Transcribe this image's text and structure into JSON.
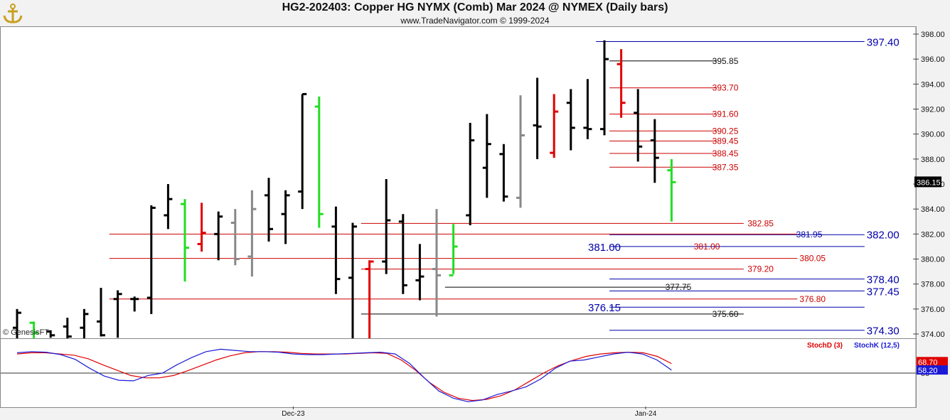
{
  "header": {
    "title": "HG2-202403:  Copper HG NYMX (Comb) Mar 2024 @ NYMEX  (Daily bars)",
    "subtitle": "www.TradeNavigator.com © 1999-2024"
  },
  "copyright": "© GenesisFT",
  "colors": {
    "up": "#000000",
    "red": "#e00000",
    "green": "#22dd22",
    "gray": "#888888",
    "blue": "#1a1ad6",
    "hline_red": "#cc0000",
    "hline_blue": "#0000aa",
    "hline_black": "#000000"
  },
  "chart_data": {
    "type": "ohlc",
    "price_axis": {
      "min": 374,
      "max": 398,
      "ticks": [
        398.0,
        396.0,
        394.0,
        392.0,
        390.0,
        388.0,
        386.0,
        384.0,
        382.0,
        380.0,
        378.0,
        376.0,
        374.0
      ]
    },
    "last_price": "386.15",
    "x_labels": [
      {
        "label": "Dec-23",
        "bar": 16.5
      },
      {
        "label": "Jan-24",
        "bar": 37.5
      }
    ],
    "bars": [
      {
        "h": 376.0,
        "l": 373.6,
        "o": 374.5,
        "c": 375.7,
        "color": "black"
      },
      {
        "h": 375.0,
        "l": 373.5,
        "o": 374.9,
        "c": 374.1,
        "color": "green"
      },
      {
        "h": 374.3,
        "l": 373.7,
        "o": 374.2,
        "c": 373.9,
        "color": "black"
      },
      {
        "h": 375.3,
        "l": 373.5,
        "o": 374.6,
        "c": 373.8,
        "color": "black"
      },
      {
        "h": 376.0,
        "l": 373.6,
        "o": 374.5,
        "c": 375.6,
        "color": "black"
      },
      {
        "h": 377.7,
        "l": 373.8,
        "o": 375.0,
        "c": 373.9,
        "color": "black"
      },
      {
        "h": 377.5,
        "l": 373.7,
        "o": 376.8,
        "c": 377.2,
        "color": "black"
      },
      {
        "h": 377.0,
        "l": 375.8,
        "o": 376.8,
        "c": 376.8,
        "color": "black"
      },
      {
        "h": 384.3,
        "l": 375.6,
        "o": 376.9,
        "c": 384.1,
        "color": "black"
      },
      {
        "h": 386.0,
        "l": 382.4,
        "o": 383.5,
        "c": 384.8,
        "color": "black"
      },
      {
        "h": 384.8,
        "l": 378.2,
        "o": 384.4,
        "c": 380.9,
        "color": "green"
      },
      {
        "h": 384.5,
        "l": 380.6,
        "o": 381.2,
        "c": 382.1,
        "color": "red"
      },
      {
        "h": 383.8,
        "l": 379.9,
        "o": 382.0,
        "c": 383.4,
        "color": "black"
      },
      {
        "h": 384.0,
        "l": 379.5,
        "o": 382.9,
        "c": 380.0,
        "color": "gray"
      },
      {
        "h": 385.5,
        "l": 378.6,
        "o": 380.2,
        "c": 384.0,
        "color": "gray"
      },
      {
        "h": 386.5,
        "l": 381.4,
        "o": 385.1,
        "c": 382.4,
        "color": "black"
      },
      {
        "h": 385.5,
        "l": 381.2,
        "o": 383.6,
        "c": 385.1,
        "color": "black"
      },
      {
        "h": 393.2,
        "l": 384.0,
        "o": 385.4,
        "c": 393.2,
        "color": "black"
      },
      {
        "h": 393.0,
        "l": 382.5,
        "o": 392.2,
        "c": 383.6,
        "color": "green"
      },
      {
        "h": 384.2,
        "l": 377.2,
        "o": 382.6,
        "c": 378.4,
        "color": "black"
      },
      {
        "h": 382.9,
        "l": 373.5,
        "o": 378.5,
        "c": 382.6,
        "color": "black"
      },
      {
        "h": 379.9,
        "l": 373.5,
        "o": 379.2,
        "c": 379.8,
        "color": "red"
      },
      {
        "h": 386.4,
        "l": 378.8,
        "o": 379.8,
        "c": 383.1,
        "color": "black"
      },
      {
        "h": 383.6,
        "l": 377.2,
        "o": 383.0,
        "c": 377.9,
        "color": "black"
      },
      {
        "h": 381.2,
        "l": 376.7,
        "o": 378.3,
        "c": 378.6,
        "color": "black"
      },
      {
        "h": 384.0,
        "l": 375.4,
        "o": 379.2,
        "c": 378.7,
        "color": "gray"
      },
      {
        "h": 382.8,
        "l": 378.8,
        "o": 378.7,
        "c": 381.0,
        "color": "green"
      },
      {
        "h": 390.9,
        "l": 382.7,
        "o": 383.5,
        "c": 389.5,
        "color": "black"
      },
      {
        "h": 391.6,
        "l": 384.9,
        "o": 387.3,
        "c": 389.2,
        "color": "black"
      },
      {
        "h": 389.2,
        "l": 384.6,
        "o": 388.4,
        "c": 385.0,
        "color": "black"
      },
      {
        "h": 393.1,
        "l": 384.1,
        "o": 384.9,
        "c": 389.9,
        "color": "gray"
      },
      {
        "h": 394.5,
        "l": 388.0,
        "o": 390.7,
        "c": 390.6,
        "color": "black"
      },
      {
        "h": 393.2,
        "l": 388.1,
        "o": 388.5,
        "c": 391.8,
        "color": "red"
      },
      {
        "h": 393.6,
        "l": 388.7,
        "o": 392.5,
        "c": 390.5,
        "color": "black"
      },
      {
        "h": 394.4,
        "l": 389.6,
        "o": 390.5,
        "c": 390.4,
        "color": "black"
      },
      {
        "h": 397.5,
        "l": 389.9,
        "o": 390.4,
        "c": 396.0,
        "color": "black"
      },
      {
        "h": 396.8,
        "l": 391.3,
        "o": 395.6,
        "c": 392.5,
        "color": "red"
      },
      {
        "h": 393.6,
        "l": 387.8,
        "o": 391.7,
        "c": 389.0,
        "color": "black"
      },
      {
        "h": 391.2,
        "l": 386.1,
        "o": 389.5,
        "c": 388.1,
        "color": "black"
      },
      {
        "h": 388.0,
        "l": 383.0,
        "o": 387.1,
        "c": 386.15,
        "color": "green"
      }
    ],
    "levels": [
      {
        "value": 397.4,
        "label": "397.40",
        "color": "blue",
        "x1": 34.5,
        "x2": 50.5,
        "label_bar": 50.5,
        "size": "large"
      },
      {
        "value": 395.85,
        "label": "395.85",
        "color": "black",
        "x1": 35.3,
        "x2": 41.7,
        "label_bar": 41.3,
        "size": "small"
      },
      {
        "value": 393.7,
        "label": "393.70",
        "color": "red",
        "x1": 35.3,
        "x2": 41.7,
        "label_bar": 41.3,
        "size": "small"
      },
      {
        "value": 391.6,
        "label": "391.60",
        "color": "red",
        "x1": 35.3,
        "x2": 41.7,
        "label_bar": 41.3,
        "size": "small"
      },
      {
        "value": 390.25,
        "label": "390.25",
        "color": "red",
        "x1": 35.3,
        "x2": 41.7,
        "label_bar": 41.3,
        "size": "small"
      },
      {
        "value": 389.45,
        "label": "389.45",
        "color": "red",
        "x1": 35.3,
        "x2": 41.7,
        "label_bar": 41.3,
        "size": "small"
      },
      {
        "value": 388.45,
        "label": "388.45",
        "color": "red",
        "x1": 35.3,
        "x2": 41.7,
        "label_bar": 41.3,
        "size": "small"
      },
      {
        "value": 387.35,
        "label": "387.35",
        "color": "red",
        "x1": 35.3,
        "x2": 41.7,
        "label_bar": 41.3,
        "size": "small"
      },
      {
        "value": 382.85,
        "label": "382.85",
        "color": "red",
        "x1": 20.5,
        "x2": 43.3,
        "label_bar": 43.4,
        "size": "small"
      },
      {
        "value": 381.95,
        "label": "381.95",
        "color": "blue",
        "x1": 35.3,
        "x2": 50.5,
        "label_bar": 46.3,
        "size": "small"
      },
      {
        "value": 382.0,
        "label": "382.00",
        "color": "blue",
        "x1": 50.5,
        "x2": 50.5,
        "label_bar": 50.5,
        "size": "large"
      },
      {
        "value": 382.0,
        "label": "",
        "color": "red",
        "x1": 5.5,
        "x2": 46.5,
        "label_bar": 46.5,
        "size": "small"
      },
      {
        "value": 381.0,
        "label": "381.00",
        "color": "blue",
        "x1": 35.3,
        "x2": 50.5,
        "label_bar": 33.9,
        "size": "large"
      },
      {
        "value": 381.0,
        "label": "381.00",
        "color": "red",
        "x1": 35.3,
        "x2": 35.3,
        "label_bar": 40.2,
        "size": "small"
      },
      {
        "value": 380.05,
        "label": "380.05",
        "color": "red",
        "x1": 5.5,
        "x2": 46.5,
        "label_bar": 46.5,
        "size": "small"
      },
      {
        "value": 379.2,
        "label": "379.20",
        "color": "red",
        "x1": 20.5,
        "x2": 43.3,
        "label_bar": 43.4,
        "size": "small"
      },
      {
        "value": 378.4,
        "label": "378.40",
        "color": "blue",
        "x1": 35.3,
        "x2": 50.5,
        "label_bar": 50.5,
        "size": "large"
      },
      {
        "value": 377.75,
        "label": "377.75",
        "color": "black",
        "x1": 25.5,
        "x2": 40.0,
        "label_bar": 38.5,
        "size": "small"
      },
      {
        "value": 377.45,
        "label": "377.45",
        "color": "blue",
        "x1": 35.3,
        "x2": 50.5,
        "label_bar": 50.5,
        "size": "large"
      },
      {
        "value": 376.8,
        "label": "376.80",
        "color": "red",
        "x1": 5.5,
        "x2": 46.5,
        "label_bar": 46.5,
        "size": "small"
      },
      {
        "value": 376.15,
        "label": "376.15",
        "color": "blue",
        "x1": 35.3,
        "x2": 50.5,
        "label_bar": 33.9,
        "size": "large"
      },
      {
        "value": 375.6,
        "label": "375.60",
        "color": "black",
        "x1": 20.5,
        "x2": 43.3,
        "label_bar": 41.3,
        "size": "small"
      },
      {
        "value": 374.3,
        "label": "374.30",
        "color": "blue",
        "x1": 35.3,
        "x2": 50.5,
        "label_bar": 50.5,
        "size": "large"
      }
    ],
    "stochastic": {
      "legend": [
        {
          "name": "StochD (3)",
          "color": "red"
        },
        {
          "name": "StochK (12,5)",
          "color": "blue"
        }
      ],
      "axis_label": "50",
      "reference_level": 50,
      "values_label": {
        "d": "68.70",
        "k": "58.20"
      },
      "d_values": [
        82,
        84,
        84,
        82,
        80,
        74,
        64,
        55,
        46,
        42,
        42,
        46,
        54,
        63,
        72,
        79,
        84,
        86,
        86,
        85,
        83,
        82,
        82,
        82,
        83,
        84,
        83,
        72,
        55,
        34,
        18,
        8,
        4,
        6,
        12,
        22,
        36,
        50,
        62,
        71,
        78,
        82,
        84,
        85,
        84,
        78,
        66
      ],
      "k_values": [
        84,
        86,
        85,
        81,
        73,
        58,
        45,
        38,
        37,
        46,
        50,
        64,
        76,
        86,
        90,
        88,
        86,
        86,
        85,
        82,
        81,
        81,
        82,
        83,
        84,
        85,
        82,
        66,
        42,
        20,
        8,
        2,
        5,
        14,
        20,
        27,
        40,
        58,
        70,
        72,
        77,
        82,
        85,
        82,
        72,
        55
      ],
      "y_min": 0,
      "y_max": 100
    }
  }
}
